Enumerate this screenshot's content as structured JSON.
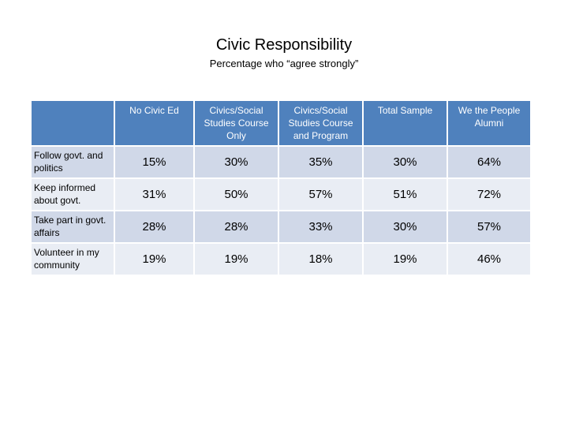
{
  "title": "Civic Responsibility",
  "subtitle": "Percentage who “agree strongly”",
  "table": {
    "columns": [
      "No Civic Ed",
      "Civics/Social Studies Course Only",
      "Civics/Social Studies Course and Program",
      "Total Sample",
      "We the People Alumni"
    ],
    "rows": [
      {
        "label": "Follow govt. and politics",
        "values": [
          "15%",
          "30%",
          "35%",
          "30%",
          "64%"
        ]
      },
      {
        "label": "Keep informed about govt.",
        "values": [
          "31%",
          "50%",
          "57%",
          "51%",
          "72%"
        ]
      },
      {
        "label": "Take part in govt. affairs",
        "values": [
          "28%",
          "28%",
          "33%",
          "30%",
          "57%"
        ]
      },
      {
        "label": "Volunteer in my community",
        "values": [
          "19%",
          "19%",
          "18%",
          "19%",
          "46%"
        ]
      }
    ]
  },
  "colors": {
    "header": "#4f81bd",
    "row_band_a": "#d0d8e8",
    "row_band_b": "#e9edf4"
  }
}
